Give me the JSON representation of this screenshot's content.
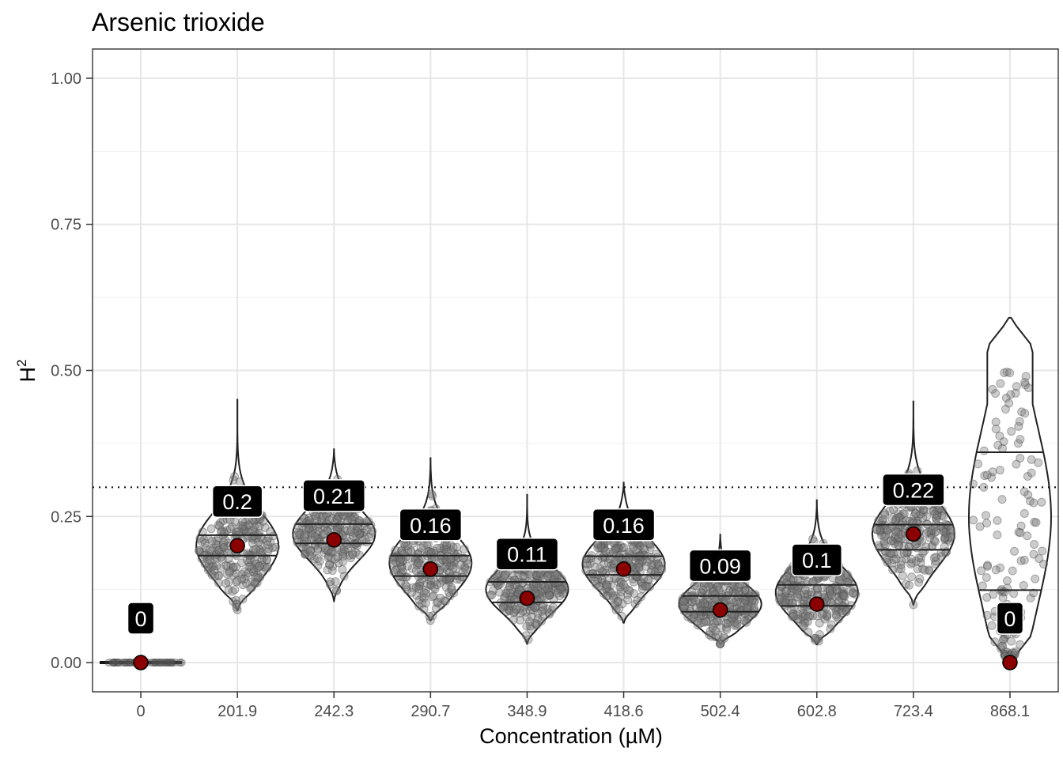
{
  "chart_data": {
    "type": "violin",
    "title": "Arsenic trioxide",
    "xlabel": "Concentration (µM)",
    "ylabel": "H",
    "ylabel_superscript": "2",
    "ylim": [
      -0.05,
      1.05
    ],
    "yticks": [
      0,
      0.25,
      0.5,
      0.75,
      1.0
    ],
    "ytick_labels": [
      "0.00",
      "0.25",
      "0.50",
      "0.75",
      "1.00"
    ],
    "threshold": 0.3,
    "categories": [
      "0",
      "201.9",
      "242.3",
      "290.7",
      "348.9",
      "418.6",
      "502.4",
      "602.8",
      "723.4",
      "868.1"
    ],
    "estimates": [
      0,
      0.2,
      0.21,
      0.16,
      0.11,
      0.16,
      0.09,
      0.1,
      0.22,
      0
    ],
    "labels": [
      "0",
      "0.2",
      "0.21",
      "0.16",
      "0.11",
      "0.16",
      "0.09",
      "0.1",
      "0.22",
      "0"
    ],
    "distributions": [
      {
        "min": 0.0,
        "max": 0.01,
        "q25": 0.0,
        "q75": 0.0,
        "mean": 0.0,
        "sd": 0.002,
        "uniform": false
      },
      {
        "min": 0.09,
        "max": 0.45,
        "q25": 0.183,
        "q75": 0.218,
        "mean": 0.2,
        "sd": 0.055,
        "uniform": false
      },
      {
        "min": 0.105,
        "max": 0.365,
        "q25": 0.204,
        "q75": 0.237,
        "mean": 0.22,
        "sd": 0.045,
        "uniform": false
      },
      {
        "min": 0.072,
        "max": 0.35,
        "q25": 0.148,
        "q75": 0.183,
        "mean": 0.17,
        "sd": 0.05,
        "uniform": false
      },
      {
        "min": 0.032,
        "max": 0.287,
        "q25": 0.103,
        "q75": 0.138,
        "mean": 0.125,
        "sd": 0.04,
        "uniform": false
      },
      {
        "min": 0.068,
        "max": 0.308,
        "q25": 0.15,
        "q75": 0.182,
        "mean": 0.168,
        "sd": 0.045,
        "uniform": false
      },
      {
        "min": 0.032,
        "max": 0.219,
        "q25": 0.087,
        "q75": 0.114,
        "mean": 0.1,
        "sd": 0.035,
        "uniform": false
      },
      {
        "min": 0.031,
        "max": 0.278,
        "q25": 0.097,
        "q75": 0.133,
        "mean": 0.12,
        "sd": 0.045,
        "uniform": false
      },
      {
        "min": 0.099,
        "max": 0.447,
        "q25": 0.193,
        "q75": 0.236,
        "mean": 0.22,
        "sd": 0.055,
        "uniform": false
      },
      {
        "min": 0.0,
        "max": 0.59,
        "q25": 0.124,
        "q75": 0.36,
        "mean": 0.25,
        "sd": 0.15,
        "uniform": true
      }
    ]
  }
}
